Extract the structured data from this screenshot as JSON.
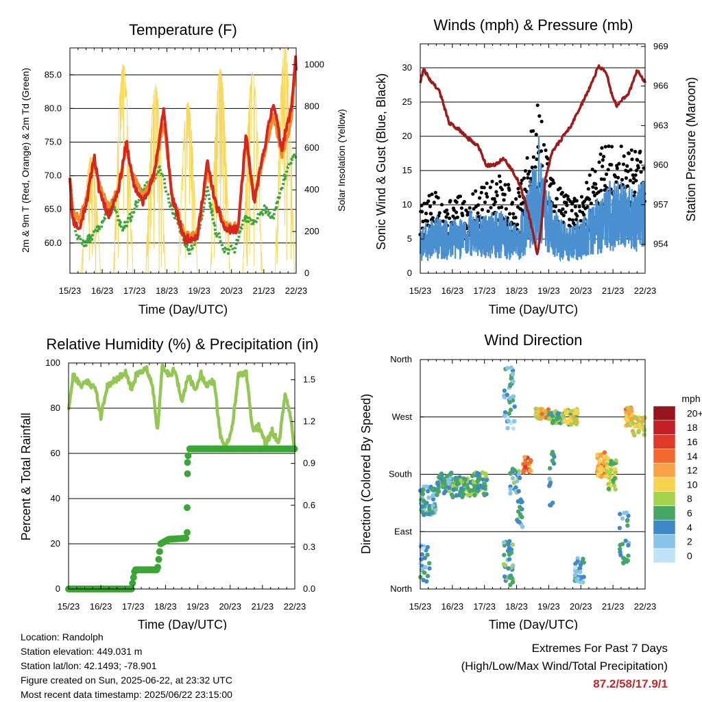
{
  "chart_data": [
    {
      "type": "line",
      "title": "Temperature (F)",
      "xlabel": "Time (Day/UTC)",
      "ylabel_left": "2m & 9m T (Red, Orange) & 2m Td (Green)",
      "ylabel_right": "Solar Insolation (Yellow)",
      "x_ticks": [
        "15/23",
        "16/23",
        "17/23",
        "18/23",
        "19/23",
        "20/23",
        "21/23",
        "22/23"
      ],
      "y_left_ticks": [
        "60.0",
        "65.0",
        "70.0",
        "75.0",
        "80.0",
        "85.0"
      ],
      "y_right_ticks": [
        "0",
        "200",
        "400",
        "600",
        "800",
        "1000"
      ],
      "ylim_left": [
        55.5,
        89.0
      ],
      "ylim_right": [
        0,
        1080
      ],
      "grid": true,
      "series": [
        {
          "color": "#d7261e",
          "values": [
            [
              0,
              70
            ],
            [
              0.08,
              63.5
            ],
            [
              0.3,
              62
            ],
            [
              0.55,
              67
            ],
            [
              0.75,
              73
            ],
            [
              0.9,
              68
            ],
            [
              1.2,
              64
            ],
            [
              1.5,
              68
            ],
            [
              1.75,
              75
            ],
            [
              1.95,
              69
            ],
            [
              2.25,
              66
            ],
            [
              2.6,
              70
            ],
            [
              2.9,
              80
            ],
            [
              3.15,
              67
            ],
            [
              3.55,
              60.5
            ],
            [
              3.95,
              61
            ],
            [
              4.25,
              72
            ],
            [
              4.5,
              66
            ],
            [
              4.8,
              62
            ],
            [
              5.2,
              62
            ],
            [
              5.45,
              76
            ],
            [
              5.7,
              66
            ],
            [
              6.05,
              75
            ],
            [
              6.3,
              81
            ],
            [
              6.55,
              74
            ],
            [
              6.85,
              80
            ],
            [
              6.98,
              87.5
            ],
            [
              7,
              86
            ]
          ]
        },
        {
          "color": "#f28a2a",
          "values": [
            [
              0,
              70
            ],
            [
              0.1,
              64.5
            ],
            [
              0.3,
              63.5
            ],
            [
              0.55,
              67.5
            ],
            [
              0.75,
              72
            ],
            [
              0.95,
              68
            ],
            [
              1.2,
              65.5
            ],
            [
              1.5,
              68
            ],
            [
              1.75,
              74
            ],
            [
              1.95,
              70
            ],
            [
              2.25,
              67
            ],
            [
              2.6,
              70
            ],
            [
              2.9,
              78
            ],
            [
              3.15,
              67.5
            ],
            [
              3.55,
              61
            ],
            [
              3.95,
              61.5
            ],
            [
              4.25,
              71
            ],
            [
              4.5,
              66
            ],
            [
              4.8,
              62.5
            ],
            [
              5.2,
              62.5
            ],
            [
              5.45,
              75
            ],
            [
              5.7,
              66.5
            ],
            [
              6.05,
              74
            ],
            [
              6.3,
              79
            ],
            [
              6.55,
              73
            ],
            [
              6.85,
              78
            ],
            [
              6.98,
              86.5
            ],
            [
              7,
              86
            ]
          ]
        },
        {
          "color": "#3aa635",
          "values": [
            [
              0,
              69.5
            ],
            [
              0.2,
              61
            ],
            [
              0.45,
              60
            ],
            [
              0.7,
              61
            ],
            [
              1,
              63
            ],
            [
              1.3,
              66
            ],
            [
              1.6,
              62
            ],
            [
              1.9,
              64
            ],
            [
              2.2,
              67.5
            ],
            [
              2.5,
              69
            ],
            [
              2.8,
              71
            ],
            [
              3.1,
              66
            ],
            [
              3.4,
              62
            ],
            [
              3.7,
              58.5
            ],
            [
              4,
              62
            ],
            [
              4.25,
              68
            ],
            [
              4.5,
              62
            ],
            [
              4.8,
              59
            ],
            [
              5.1,
              59
            ],
            [
              5.4,
              64
            ],
            [
              5.7,
              63
            ],
            [
              6,
              65
            ],
            [
              6.3,
              64
            ],
            [
              6.6,
              69
            ],
            [
              6.8,
              72
            ],
            [
              7,
              73
            ]
          ]
        }
      ]
    },
    {
      "type": "line",
      "title": "Winds (mph) & Pressure (mb)",
      "xlabel": "Time (Day/UTC)",
      "ylabel_left": "Sonic Wind & Gust (Blue, Black)",
      "ylabel_right": "Station Pressure (Maroon)",
      "x_ticks": [
        "15/23",
        "16/23",
        "17/23",
        "18/23",
        "19/23",
        "20/23",
        "21/23",
        "22/23"
      ],
      "y_left_ticks": [
        "0",
        "5",
        "10",
        "15",
        "20",
        "25",
        "30"
      ],
      "y_right_ticks": [
        "954",
        "957",
        "960",
        "963",
        "966",
        "969"
      ],
      "ylim_left": [
        0,
        33.5
      ],
      "ylim_right": [
        951.8,
        969.2
      ],
      "grid": true,
      "series": [
        {
          "color": "#9e1b1b",
          "values": [
            [
              0,
              966.3
            ],
            [
              0.1,
              967.3
            ],
            [
              0.3,
              966.5
            ],
            [
              0.6,
              965.6
            ],
            [
              0.9,
              963.2
            ],
            [
              1.2,
              962.7
            ],
            [
              1.5,
              962
            ],
            [
              1.8,
              961.5
            ],
            [
              2.05,
              960
            ],
            [
              2.3,
              960
            ],
            [
              2.6,
              960.5
            ],
            [
              2.9,
              959.5
            ],
            [
              3.1,
              958.5
            ],
            [
              3.3,
              957
            ],
            [
              3.5,
              955
            ],
            [
              3.65,
              953.2
            ],
            [
              3.75,
              955
            ],
            [
              3.9,
              959
            ],
            [
              4.1,
              961
            ],
            [
              4.4,
              962
            ],
            [
              4.7,
              963
            ],
            [
              5,
              964.5
            ],
            [
              5.3,
              966
            ],
            [
              5.55,
              967.5
            ],
            [
              5.8,
              967
            ],
            [
              5.95,
              965.5
            ],
            [
              6.1,
              964.5
            ],
            [
              6.3,
              965
            ],
            [
              6.5,
              965.5
            ],
            [
              6.75,
              967.2
            ],
            [
              7,
              966.3
            ]
          ]
        }
      ]
    },
    {
      "type": "line",
      "title": "Relative Humidity (%) & Precipitation (in)",
      "xlabel": "Time (Day/UTC)",
      "ylabel_left": "Percent & Total Rainfall",
      "x_ticks": [
        "15/23",
        "16/23",
        "17/23",
        "18/23",
        "19/23",
        "20/23",
        "21/23",
        "22/23"
      ],
      "y_left_ticks": [
        "0",
        "20",
        "40",
        "60",
        "80",
        "100"
      ],
      "y_right_ticks": [
        "0.0",
        "0.3",
        "0.6",
        "0.9",
        "1.2",
        "1.5"
      ],
      "ylim_left": [
        0,
        100
      ],
      "ylim_right": [
        0,
        1.62
      ],
      "grid": true,
      "series": [
        {
          "color": "#93c653",
          "values": [
            [
              0,
              80
            ],
            [
              0.15,
              95
            ],
            [
              0.35,
              90
            ],
            [
              0.6,
              92
            ],
            [
              0.85,
              88
            ],
            [
              1.0,
              76
            ],
            [
              1.2,
              90
            ],
            [
              1.5,
              93
            ],
            [
              1.75,
              96
            ],
            [
              1.95,
              88
            ],
            [
              2.1,
              95
            ],
            [
              2.4,
              98
            ],
            [
              2.6,
              90
            ],
            [
              2.75,
              70
            ],
            [
              2.9,
              98
            ],
            [
              3.1,
              95
            ],
            [
              3.3,
              97
            ],
            [
              3.5,
              82
            ],
            [
              3.7,
              95
            ],
            [
              3.9,
              88
            ],
            [
              4.1,
              95
            ],
            [
              4.3,
              90
            ],
            [
              4.5,
              92
            ],
            [
              4.7,
              68
            ],
            [
              4.85,
              62
            ],
            [
              5.05,
              70
            ],
            [
              5.25,
              94
            ],
            [
              5.5,
              96
            ],
            [
              5.7,
              70
            ],
            [
              5.9,
              72
            ],
            [
              6.1,
              64
            ],
            [
              6.3,
              70
            ],
            [
              6.5,
              64
            ],
            [
              6.7,
              85
            ],
            [
              6.85,
              78
            ],
            [
              7,
              62
            ]
          ]
        },
        {
          "color": "#3aa635",
          "values": [
            [
              0,
              0
            ],
            [
              1.95,
              0
            ],
            [
              2.05,
              8.5
            ],
            [
              2.75,
              8.5
            ],
            [
              2.85,
              20
            ],
            [
              3.1,
              22
            ],
            [
              3.65,
              22.5
            ],
            [
              3.72,
              62
            ],
            [
              4.2,
              62
            ],
            [
              7,
              62
            ]
          ]
        }
      ]
    },
    {
      "type": "scatter",
      "title": "Wind Direction",
      "xlabel": "Time (Day/UTC)",
      "ylabel": "Direction (Colored By Speed)",
      "x_ticks": [
        "15/23",
        "16/23",
        "17/23",
        "18/23",
        "19/23",
        "20/23",
        "21/23",
        "22/23"
      ],
      "y_ticks": [
        "North",
        "East",
        "South",
        "West",
        "North"
      ],
      "grid": true,
      "colorbar": {
        "title": "mph",
        "labels": [
          "20+",
          "18",
          "16",
          "14",
          "12",
          "10",
          "8",
          "6",
          "4",
          "2",
          "0"
        ],
        "colors": [
          "#96161e",
          "#c21f26",
          "#e0392b",
          "#f26a2f",
          "#f7a246",
          "#f5d34f",
          "#a6d14c",
          "#44a864",
          "#4188c8",
          "#88c3e8",
          "#bfe3f5"
        ]
      }
    }
  ],
  "footer": {
    "location": "Location: Randolph",
    "elevation": "Station elevation: 449.031 m",
    "latlon": "Station lat/lon: 42.1493; -78.901",
    "created": "Figure created on Sun, 2025-06-22, at 23:32 UTC",
    "recent": "Most recent data timestamp: 2025/06/22 23:15:00"
  },
  "extremes": {
    "title": "Extremes For Past 7 Days",
    "subtitle": "(High/Low/Max Wind/Total Precipitation)",
    "values": "87.2/58/17.9/1"
  }
}
